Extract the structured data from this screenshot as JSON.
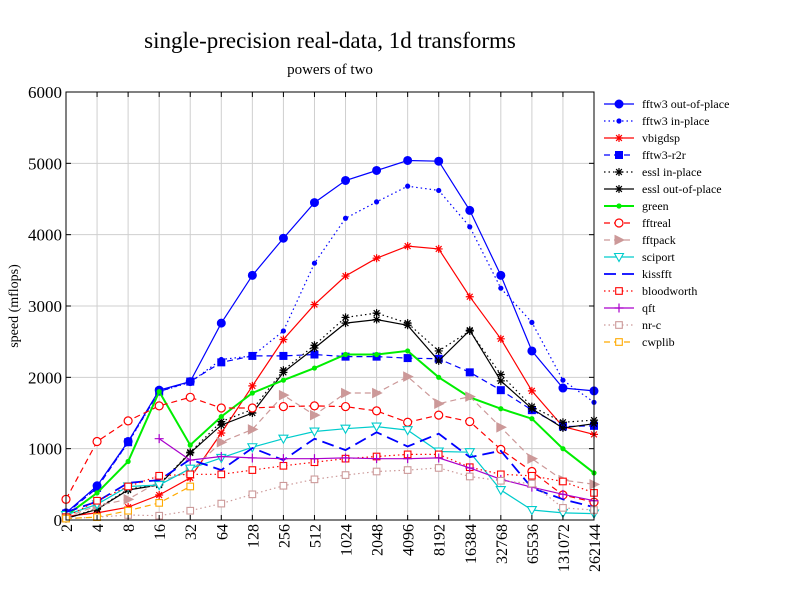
{
  "chart_data": {
    "type": "line",
    "title": "single-precision real-data, 1d transforms",
    "subtitle": "powers of two",
    "xlabel": "",
    "ylabel": "speed (mflops)",
    "categories": [
      "2",
      "4",
      "8",
      "16",
      "32",
      "64",
      "128",
      "256",
      "512",
      "1024",
      "2048",
      "4096",
      "8192",
      "16384",
      "32768",
      "65536",
      "131072",
      "262144"
    ],
    "ylim": [
      0,
      6000
    ],
    "yticks": [
      0,
      1000,
      2000,
      3000,
      4000,
      5000,
      6000
    ],
    "grid": true,
    "legend_position": "right",
    "series": [
      {
        "name": "fftw3 out-of-place",
        "color": "#0000ff",
        "dash": "solid",
        "marker": "filled-circle",
        "values": [
          100,
          480,
          1100,
          1820,
          1940,
          2760,
          3430,
          3950,
          4450,
          4760,
          4900,
          5040,
          5030,
          4340,
          3430,
          2370,
          1850,
          1810
        ]
      },
      {
        "name": "fftw3 in-place",
        "color": "#0000ff",
        "dash": "dotted",
        "marker": "small-dot",
        "values": [
          100,
          470,
          1080,
          1800,
          1930,
          2250,
          2300,
          2650,
          3600,
          4230,
          4460,
          4680,
          4620,
          4110,
          3250,
          2770,
          1960,
          1650
        ]
      },
      {
        "name": "vbigdsp",
        "color": "#ff0000",
        "dash": "solid",
        "marker": "star",
        "values": [
          50,
          100,
          180,
          350,
          590,
          1220,
          1880,
          2530,
          3020,
          3420,
          3670,
          3840,
          3800,
          3130,
          2540,
          1810,
          1310,
          1200
        ]
      },
      {
        "name": "fftw3-r2r",
        "color": "#0000ff",
        "dash": "dashed",
        "marker": "filled-square",
        "values": [
          90,
          450,
          1090,
          1800,
          1940,
          2210,
          2300,
          2300,
          2320,
          2290,
          2290,
          2270,
          2260,
          2070,
          1820,
          1540,
          1310,
          1320
        ]
      },
      {
        "name": "essl in-place",
        "color": "#000000",
        "dash": "dotted",
        "marker": "star",
        "values": [
          20,
          160,
          430,
          500,
          950,
          1380,
          1550,
          2100,
          2450,
          2840,
          2900,
          2760,
          2370,
          2650,
          2040,
          1590,
          1370,
          1400
        ]
      },
      {
        "name": "essl out-of-place",
        "color": "#000000",
        "dash": "solid",
        "marker": "star",
        "values": [
          20,
          150,
          420,
          490,
          940,
          1330,
          1500,
          2070,
          2410,
          2760,
          2810,
          2730,
          2230,
          2660,
          1950,
          1560,
          1290,
          1350
        ]
      },
      {
        "name": "green",
        "color": "#00ee00",
        "dash": "solid",
        "marker": "small-dot",
        "values": [
          60,
          380,
          820,
          1800,
          1050,
          1450,
          1780,
          1960,
          2130,
          2320,
          2320,
          2370,
          2000,
          1720,
          1560,
          1420,
          1000,
          660
        ]
      },
      {
        "name": "fftreal",
        "color": "#ff0000",
        "dash": "dashed",
        "marker": "open-circle",
        "values": [
          290,
          1100,
          1390,
          1600,
          1720,
          1570,
          1570,
          1590,
          1600,
          1590,
          1530,
          1370,
          1470,
          1380,
          990,
          680,
          350,
          250
        ]
      },
      {
        "name": "fftpack",
        "color": "#cc9999",
        "dash": "dashed",
        "marker": "triangle-right",
        "values": [
          40,
          200,
          290,
          540,
          680,
          1090,
          1270,
          1750,
          1470,
          1780,
          1780,
          2010,
          1630,
          1730,
          1300,
          860,
          560,
          500
        ]
      },
      {
        "name": "sciport",
        "color": "#00cccc",
        "dash": "solid",
        "marker": "triangle-down",
        "values": [
          70,
          220,
          470,
          490,
          720,
          870,
          1020,
          1140,
          1240,
          1280,
          1310,
          1260,
          960,
          950,
          420,
          140,
          100,
          90
        ]
      },
      {
        "name": "kissfft",
        "color": "#0000ff",
        "dash": "longdash",
        "marker": "none",
        "values": [
          110,
          260,
          520,
          560,
          850,
          700,
          1010,
          840,
          1140,
          980,
          1230,
          1030,
          1210,
          880,
          970,
          450,
          290,
          180
        ]
      },
      {
        "name": "bloodworth",
        "color": "#ff0000",
        "dash": "dotted",
        "marker": "open-square",
        "values": [
          40,
          270,
          470,
          620,
          640,
          640,
          700,
          760,
          810,
          860,
          890,
          920,
          920,
          740,
          640,
          620,
          540,
          380
        ]
      },
      {
        "name": "qft",
        "color": "#aa00cc",
        "dash": "solid",
        "marker": "plus",
        "values": [
          null,
          null,
          null,
          1140,
          840,
          890,
          870,
          860,
          860,
          870,
          860,
          860,
          870,
          730,
          570,
          460,
          360,
          270
        ]
      },
      {
        "name": "nr-c",
        "color": "#cc9999",
        "dash": "dotted",
        "marker": "open-square",
        "values": [
          20,
          40,
          70,
          60,
          130,
          230,
          360,
          480,
          570,
          630,
          680,
          700,
          730,
          610,
          550,
          510,
          170,
          140
        ]
      },
      {
        "name": "cwplib",
        "color": "#ffaa00",
        "dash": "dashed",
        "marker": "open-square",
        "values": [
          20,
          40,
          130,
          240,
          470,
          null,
          null,
          null,
          null,
          null,
          null,
          null,
          null,
          null,
          null,
          null,
          null,
          null
        ]
      }
    ]
  }
}
